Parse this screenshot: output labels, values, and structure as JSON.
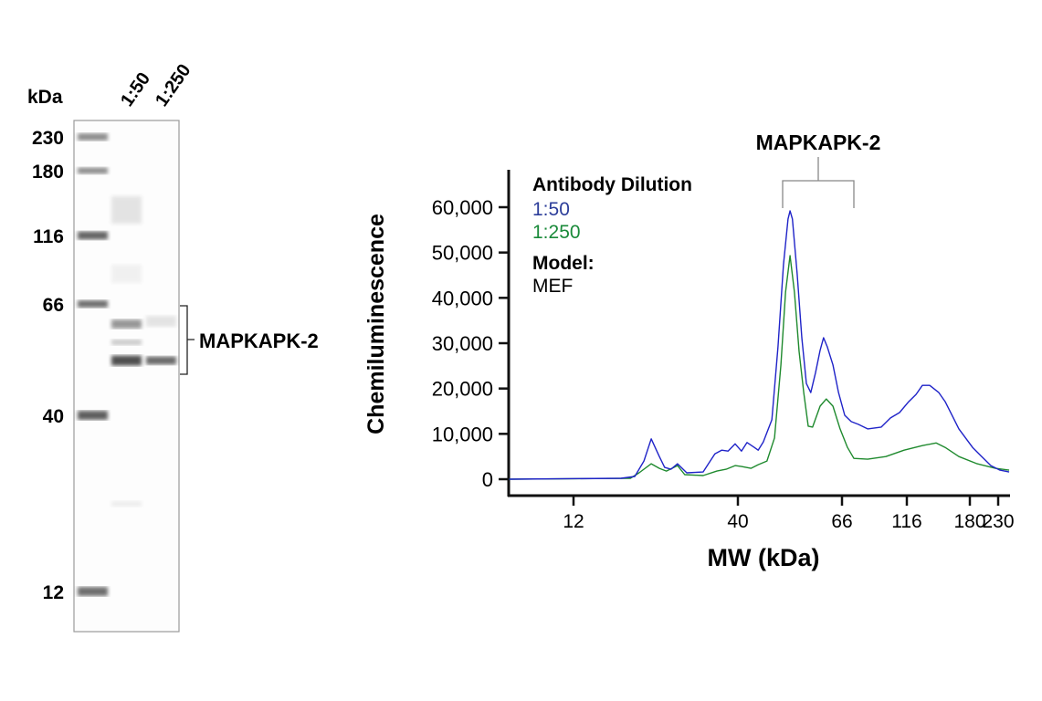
{
  "gel": {
    "unit_label": "kDa",
    "ladder_labels": [
      "230",
      "180",
      "116",
      "66",
      "40",
      "12"
    ],
    "lane_labels": [
      "1:50",
      "1:250"
    ],
    "band_label": "MAPKAPK-2"
  },
  "chart_data": {
    "type": "line",
    "title": "MAPKAPK-2",
    "xlabel": "MW (kDa)",
    "ylabel": "Chemiluminescence",
    "x_ticks": [
      12,
      40,
      66,
      116,
      180,
      230
    ],
    "x_tick_labels": [
      "12",
      "40",
      "66",
      "116",
      "180",
      "230"
    ],
    "y_ticks": [
      0,
      10000,
      20000,
      30000,
      40000,
      50000,
      60000
    ],
    "y_tick_labels": [
      "0",
      "10,000",
      "20,000",
      "30,000",
      "40,000",
      "50,000",
      "60,000"
    ],
    "xlim": [
      7.5,
      253
    ],
    "ylim": [
      0,
      60000
    ],
    "x_scale": "ladder-calibrated (non-uniform)",
    "grid": false,
    "legend": {
      "title": "Antibody Dilution",
      "model_label": "Model:",
      "model_value": "MEF",
      "placement": "top-left"
    },
    "series": [
      {
        "name": "1:50",
        "color": "#1f23c8",
        "label_color": "#2d3e9a",
        "x": [
          7.5,
          17.0,
          18.8,
          20.1,
          21.2,
          22.5,
          23.4,
          24.5,
          25.7,
          27.5,
          31.0,
          33.8,
          35.5,
          37.2,
          39.2,
          40.7,
          41.8,
          43.3,
          44.1,
          45.2,
          47.1,
          48.5,
          49.8,
          50.9,
          51.4,
          52.0,
          53.2,
          54.4,
          55.6,
          56.8,
          58.1,
          59.4,
          60.4,
          61.5,
          63.2,
          64.9,
          67.6,
          71.5,
          76.1,
          82.5,
          92.9,
          100.6,
          108.9,
          117.5,
          123.7,
          129.3,
          136.0,
          145.0,
          151.6,
          166.8,
          184.3,
          199.5,
          215.9,
          233.7,
          252.9
        ],
        "y": [
          0,
          200,
          600,
          4000,
          8900,
          5000,
          2600,
          2200,
          3400,
          1400,
          1600,
          5600,
          6400,
          6200,
          7800,
          6200,
          8100,
          7000,
          6400,
          8200,
          13100,
          29200,
          47300,
          57400,
          59200,
          57400,
          45300,
          31200,
          21100,
          19100,
          23500,
          28400,
          31200,
          29200,
          25200,
          19100,
          14100,
          12700,
          12100,
          11100,
          11500,
          13500,
          14700,
          17100,
          18700,
          20700,
          20700,
          19100,
          17100,
          11100,
          7000,
          5000,
          3000,
          2000,
          1600
        ]
      },
      {
        "name": "1:250",
        "color": "#1f8a2e",
        "label_color": "#1a8a3a",
        "x": [
          7.5,
          18.2,
          19.4,
          21.2,
          22.5,
          23.7,
          25.7,
          27.1,
          31.0,
          34.3,
          36.7,
          39.2,
          40.7,
          42.6,
          44.1,
          46.0,
          47.7,
          49.2,
          50.3,
          51.4,
          52.5,
          53.7,
          54.9,
          56.1,
          57.3,
          59.4,
          61.2,
          63.2,
          65.4,
          69.2,
          73.2,
          82.5,
          96.6,
          113.3,
          129.3,
          142.2,
          151.6,
          166.8,
          191.8,
          224.6,
          252.9
        ],
        "y": [
          0,
          200,
          1400,
          3400,
          2400,
          1800,
          3000,
          1000,
          800,
          1800,
          2200,
          3000,
          2800,
          2400,
          3200,
          4000,
          9100,
          25200,
          41300,
          49300,
          41300,
          28200,
          19100,
          11700,
          11500,
          16100,
          17700,
          16100,
          11100,
          7000,
          4600,
          4400,
          5000,
          6400,
          7400,
          8000,
          7000,
          5000,
          3400,
          2400,
          2000
        ]
      }
    ]
  }
}
